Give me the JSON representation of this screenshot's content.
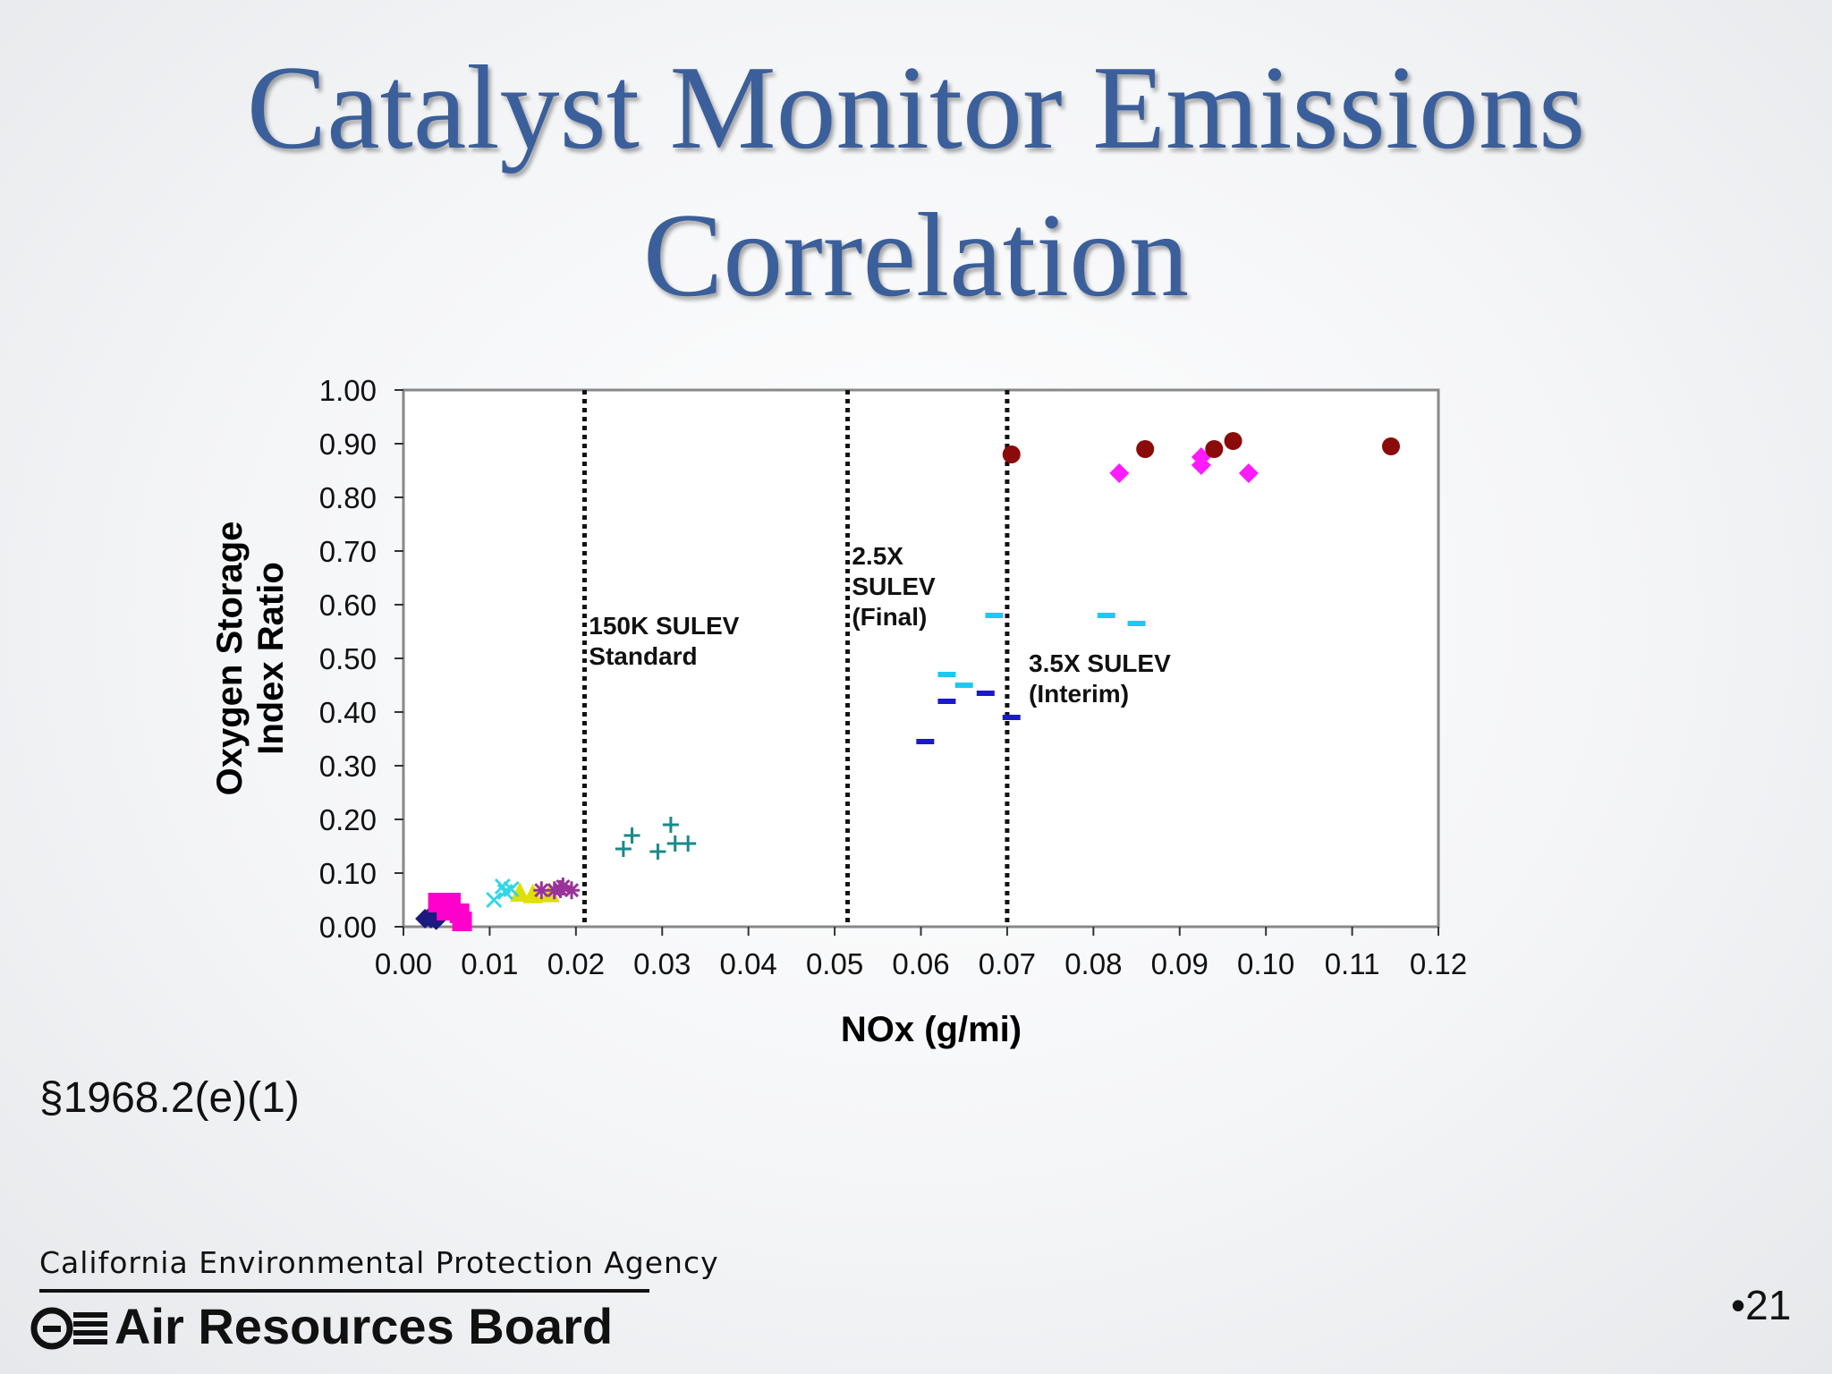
{
  "slide": {
    "title_line1": "Catalyst Monitor Emissions",
    "title_line2": "Correlation",
    "section_ref": "§1968.2(e)(1)",
    "agency": "California  Environmental  Protection  Agency",
    "board": "Air Resources Board",
    "page_number": "•21"
  },
  "chart_data": {
    "type": "scatter",
    "title": "",
    "xlabel": "NOx (g/mi)",
    "ylabel_line1": "Oxygen Storage",
    "ylabel_line2": "Index Ratio",
    "xlim": [
      0,
      0.12
    ],
    "ylim": [
      0,
      1
    ],
    "x_ticks": [
      0.0,
      0.01,
      0.02,
      0.03,
      0.04,
      0.05,
      0.06,
      0.07,
      0.08,
      0.09,
      0.1,
      0.11,
      0.12
    ],
    "x_tick_labels": [
      "0.00",
      "0.01",
      "0.02",
      "0.03",
      "0.04",
      "0.05",
      "0.06",
      "0.07",
      "0.08",
      "0.09",
      "0.10",
      "0.11",
      "0.12"
    ],
    "y_ticks": [
      0.0,
      0.1,
      0.2,
      0.3,
      0.4,
      0.5,
      0.6,
      0.7,
      0.8,
      0.9,
      1.0
    ],
    "y_tick_labels": [
      "0.00",
      "0.10",
      "0.20",
      "0.30",
      "0.40",
      "0.50",
      "0.60",
      "0.70",
      "0.80",
      "0.90",
      "1.00"
    ],
    "grid": false,
    "legend": "none",
    "reference_lines": [
      {
        "x": 0.021,
        "label_lines": [
          "150K SULEV",
          " Standard"
        ],
        "label_x": 0.0215,
        "label_y": 0.545
      },
      {
        "x": 0.0515,
        "label_lines": [
          "2.5X",
          "SULEV",
          "(Final)"
        ],
        "label_x": 0.052,
        "label_y": 0.675
      },
      {
        "x": 0.07,
        "label_lines": [
          "3.5X SULEV",
          " (Interim)"
        ],
        "label_x": 0.0725,
        "label_y": 0.475
      }
    ],
    "series": [
      {
        "marker": "diamond",
        "color": "#1a1a80",
        "points": [
          [
            0.0025,
            0.015
          ],
          [
            0.0032,
            0.015
          ],
          [
            0.0038,
            0.012
          ],
          [
            0.003,
            0.018
          ]
        ]
      },
      {
        "marker": "square",
        "color": "#ff00cc",
        "points": [
          [
            0.004,
            0.045
          ],
          [
            0.0055,
            0.045
          ],
          [
            0.0065,
            0.025
          ],
          [
            0.0068,
            0.01
          ],
          [
            0.005,
            0.03
          ]
        ]
      },
      {
        "marker": "triangle",
        "color": "#e0e000",
        "points": [
          [
            0.0135,
            0.065
          ],
          [
            0.015,
            0.062
          ],
          [
            0.017,
            0.064
          ]
        ]
      },
      {
        "marker": "x",
        "color": "#33d6e6",
        "points": [
          [
            0.0105,
            0.05
          ],
          [
            0.0115,
            0.075
          ],
          [
            0.0125,
            0.07
          ],
          [
            0.0118,
            0.065
          ]
        ]
      },
      {
        "marker": "star",
        "color": "#993399",
        "points": [
          [
            0.016,
            0.068
          ],
          [
            0.0175,
            0.068
          ],
          [
            0.0185,
            0.075
          ],
          [
            0.0195,
            0.068
          ],
          [
            0.0182,
            0.07
          ]
        ]
      },
      {
        "marker": "plus",
        "color": "#1a8a8a",
        "points": [
          [
            0.0255,
            0.145
          ],
          [
            0.0265,
            0.17
          ],
          [
            0.0295,
            0.14
          ],
          [
            0.031,
            0.19
          ],
          [
            0.0315,
            0.155
          ],
          [
            0.033,
            0.155
          ]
        ]
      },
      {
        "marker": "dash",
        "color": "#1a1acc",
        "points": [
          [
            0.0605,
            0.345
          ],
          [
            0.063,
            0.42
          ],
          [
            0.0675,
            0.435
          ],
          [
            0.0705,
            0.39
          ]
        ]
      },
      {
        "marker": "dash",
        "color": "#1ec8f0",
        "points": [
          [
            0.063,
            0.47
          ],
          [
            0.065,
            0.45
          ],
          [
            0.0685,
            0.58
          ],
          [
            0.0815,
            0.58
          ],
          [
            0.085,
            0.565
          ]
        ]
      },
      {
        "marker": "diamond",
        "color": "#ff1aff",
        "points": [
          [
            0.083,
            0.845
          ],
          [
            0.0925,
            0.875
          ],
          [
            0.0925,
            0.86
          ],
          [
            0.098,
            0.845
          ]
        ]
      },
      {
        "marker": "circle",
        "color": "#8b0a0a",
        "points": [
          [
            0.0705,
            0.88
          ],
          [
            0.086,
            0.89
          ],
          [
            0.094,
            0.89
          ],
          [
            0.0962,
            0.905
          ],
          [
            0.1145,
            0.895
          ]
        ]
      }
    ]
  }
}
